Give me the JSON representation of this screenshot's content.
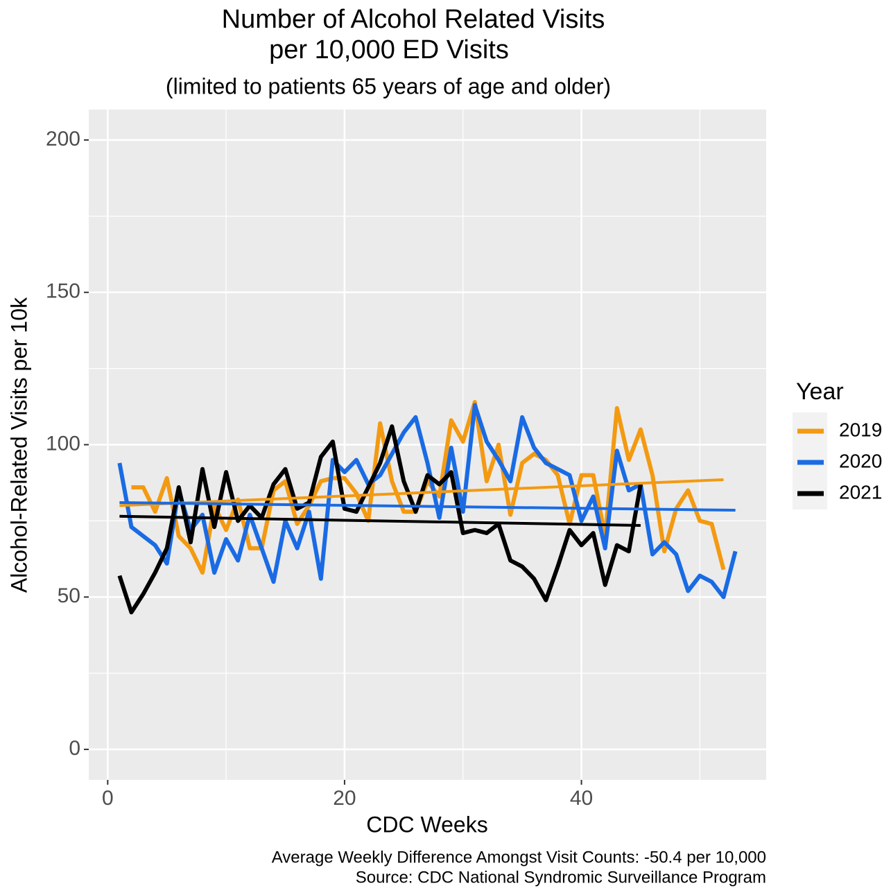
{
  "chart_data": {
    "type": "line",
    "title": [
      "Number of Alcohol Related Visits",
      "per 10,000 ED Visits"
    ],
    "subtitle": "(limited to patients 65 years of age and older)",
    "x_label": "CDC Weeks",
    "y_label": "Alcohol-Related Visits per 10k",
    "legend_title": "Year",
    "caption": [
      "Average Weekly Difference Amongst Visit Counts: -50.4 per 10,000",
      "Source: CDC National Syndromic Surveillance Program"
    ],
    "xlim": [
      -1.6,
      55.6
    ],
    "xticks": [
      0,
      20,
      40
    ],
    "xminor": [
      10,
      30,
      50
    ],
    "ylim": [
      -10,
      210
    ],
    "yticks": [
      0,
      50,
      100,
      150,
      200
    ],
    "yminor": [
      25,
      75,
      125,
      175
    ],
    "grid": true,
    "legend": "right",
    "series": [
      {
        "name": "2019",
        "color": "#f39a12",
        "x": [
          2,
          3,
          4,
          5,
          6,
          7,
          8,
          9,
          10,
          11,
          12,
          13,
          14,
          15,
          16,
          17,
          18,
          19,
          20,
          21,
          22,
          23,
          24,
          25,
          26,
          27,
          28,
          29,
          30,
          31,
          32,
          33,
          34,
          35,
          36,
          37,
          38,
          39,
          40,
          41,
          42,
          43,
          44,
          45,
          46,
          47,
          48,
          49,
          50,
          51,
          52
        ],
        "values": [
          86,
          86,
          78,
          89,
          70,
          66,
          58,
          80,
          72,
          82,
          66,
          66,
          85,
          88,
          74,
          80,
          88,
          89,
          89,
          84,
          75,
          107,
          88,
          78,
          78,
          88,
          83,
          108,
          101,
          114,
          88,
          100,
          77,
          94,
          97,
          95,
          90,
          74,
          90,
          90,
          70,
          112,
          95,
          105,
          90,
          65,
          79,
          85,
          75,
          74,
          59
        ],
        "trend": {
          "x": [
            1,
            52
          ],
          "values": [
            80,
            88.5
          ]
        }
      },
      {
        "name": "2020",
        "color": "#1a6be3",
        "x": [
          1,
          2,
          3,
          4,
          5,
          6,
          7,
          8,
          9,
          10,
          11,
          12,
          13,
          14,
          15,
          16,
          17,
          18,
          19,
          20,
          21,
          22,
          23,
          24,
          25,
          26,
          27,
          28,
          29,
          30,
          31,
          32,
          33,
          34,
          35,
          36,
          37,
          38,
          39,
          40,
          41,
          42,
          43,
          44,
          45,
          46,
          47,
          48,
          49,
          50,
          51,
          52,
          53
        ],
        "values": [
          94,
          73,
          70,
          67,
          61,
          85,
          72,
          77,
          58,
          69,
          62,
          77,
          66,
          55,
          75,
          66,
          78,
          56,
          95,
          91,
          95,
          87,
          90,
          97,
          104,
          109,
          94,
          76,
          99,
          78,
          113,
          101,
          95,
          88,
          109,
          99,
          94,
          92,
          90,
          75,
          83,
          66,
          98,
          85,
          87,
          64,
          68,
          64,
          52,
          57,
          55,
          50,
          65
        ],
        "trend": {
          "x": [
            1,
            53
          ],
          "values": [
            81,
            78.5
          ]
        }
      },
      {
        "name": "2021",
        "color": "#000000",
        "x": [
          1,
          2,
          3,
          4,
          5,
          6,
          7,
          8,
          9,
          10,
          11,
          12,
          13,
          14,
          15,
          16,
          17,
          18,
          19,
          20,
          21,
          22,
          23,
          24,
          25,
          26,
          27,
          28,
          29,
          30,
          31,
          32,
          33,
          34,
          35,
          36,
          37,
          38,
          39,
          40,
          41,
          42,
          43,
          44,
          45
        ],
        "values": [
          57,
          45,
          51,
          58,
          66,
          86,
          68,
          92,
          73,
          91,
          75,
          80,
          76,
          87,
          92,
          79,
          81,
          96,
          101,
          79,
          78,
          86,
          94,
          106,
          88,
          78,
          90,
          87,
          91,
          71,
          72,
          71,
          74,
          62,
          60,
          56,
          49,
          60,
          72,
          67,
          71,
          54,
          67,
          65,
          87
        ],
        "trend": {
          "x": [
            1,
            45
          ],
          "values": [
            76.5,
            73.5
          ]
        }
      }
    ]
  }
}
